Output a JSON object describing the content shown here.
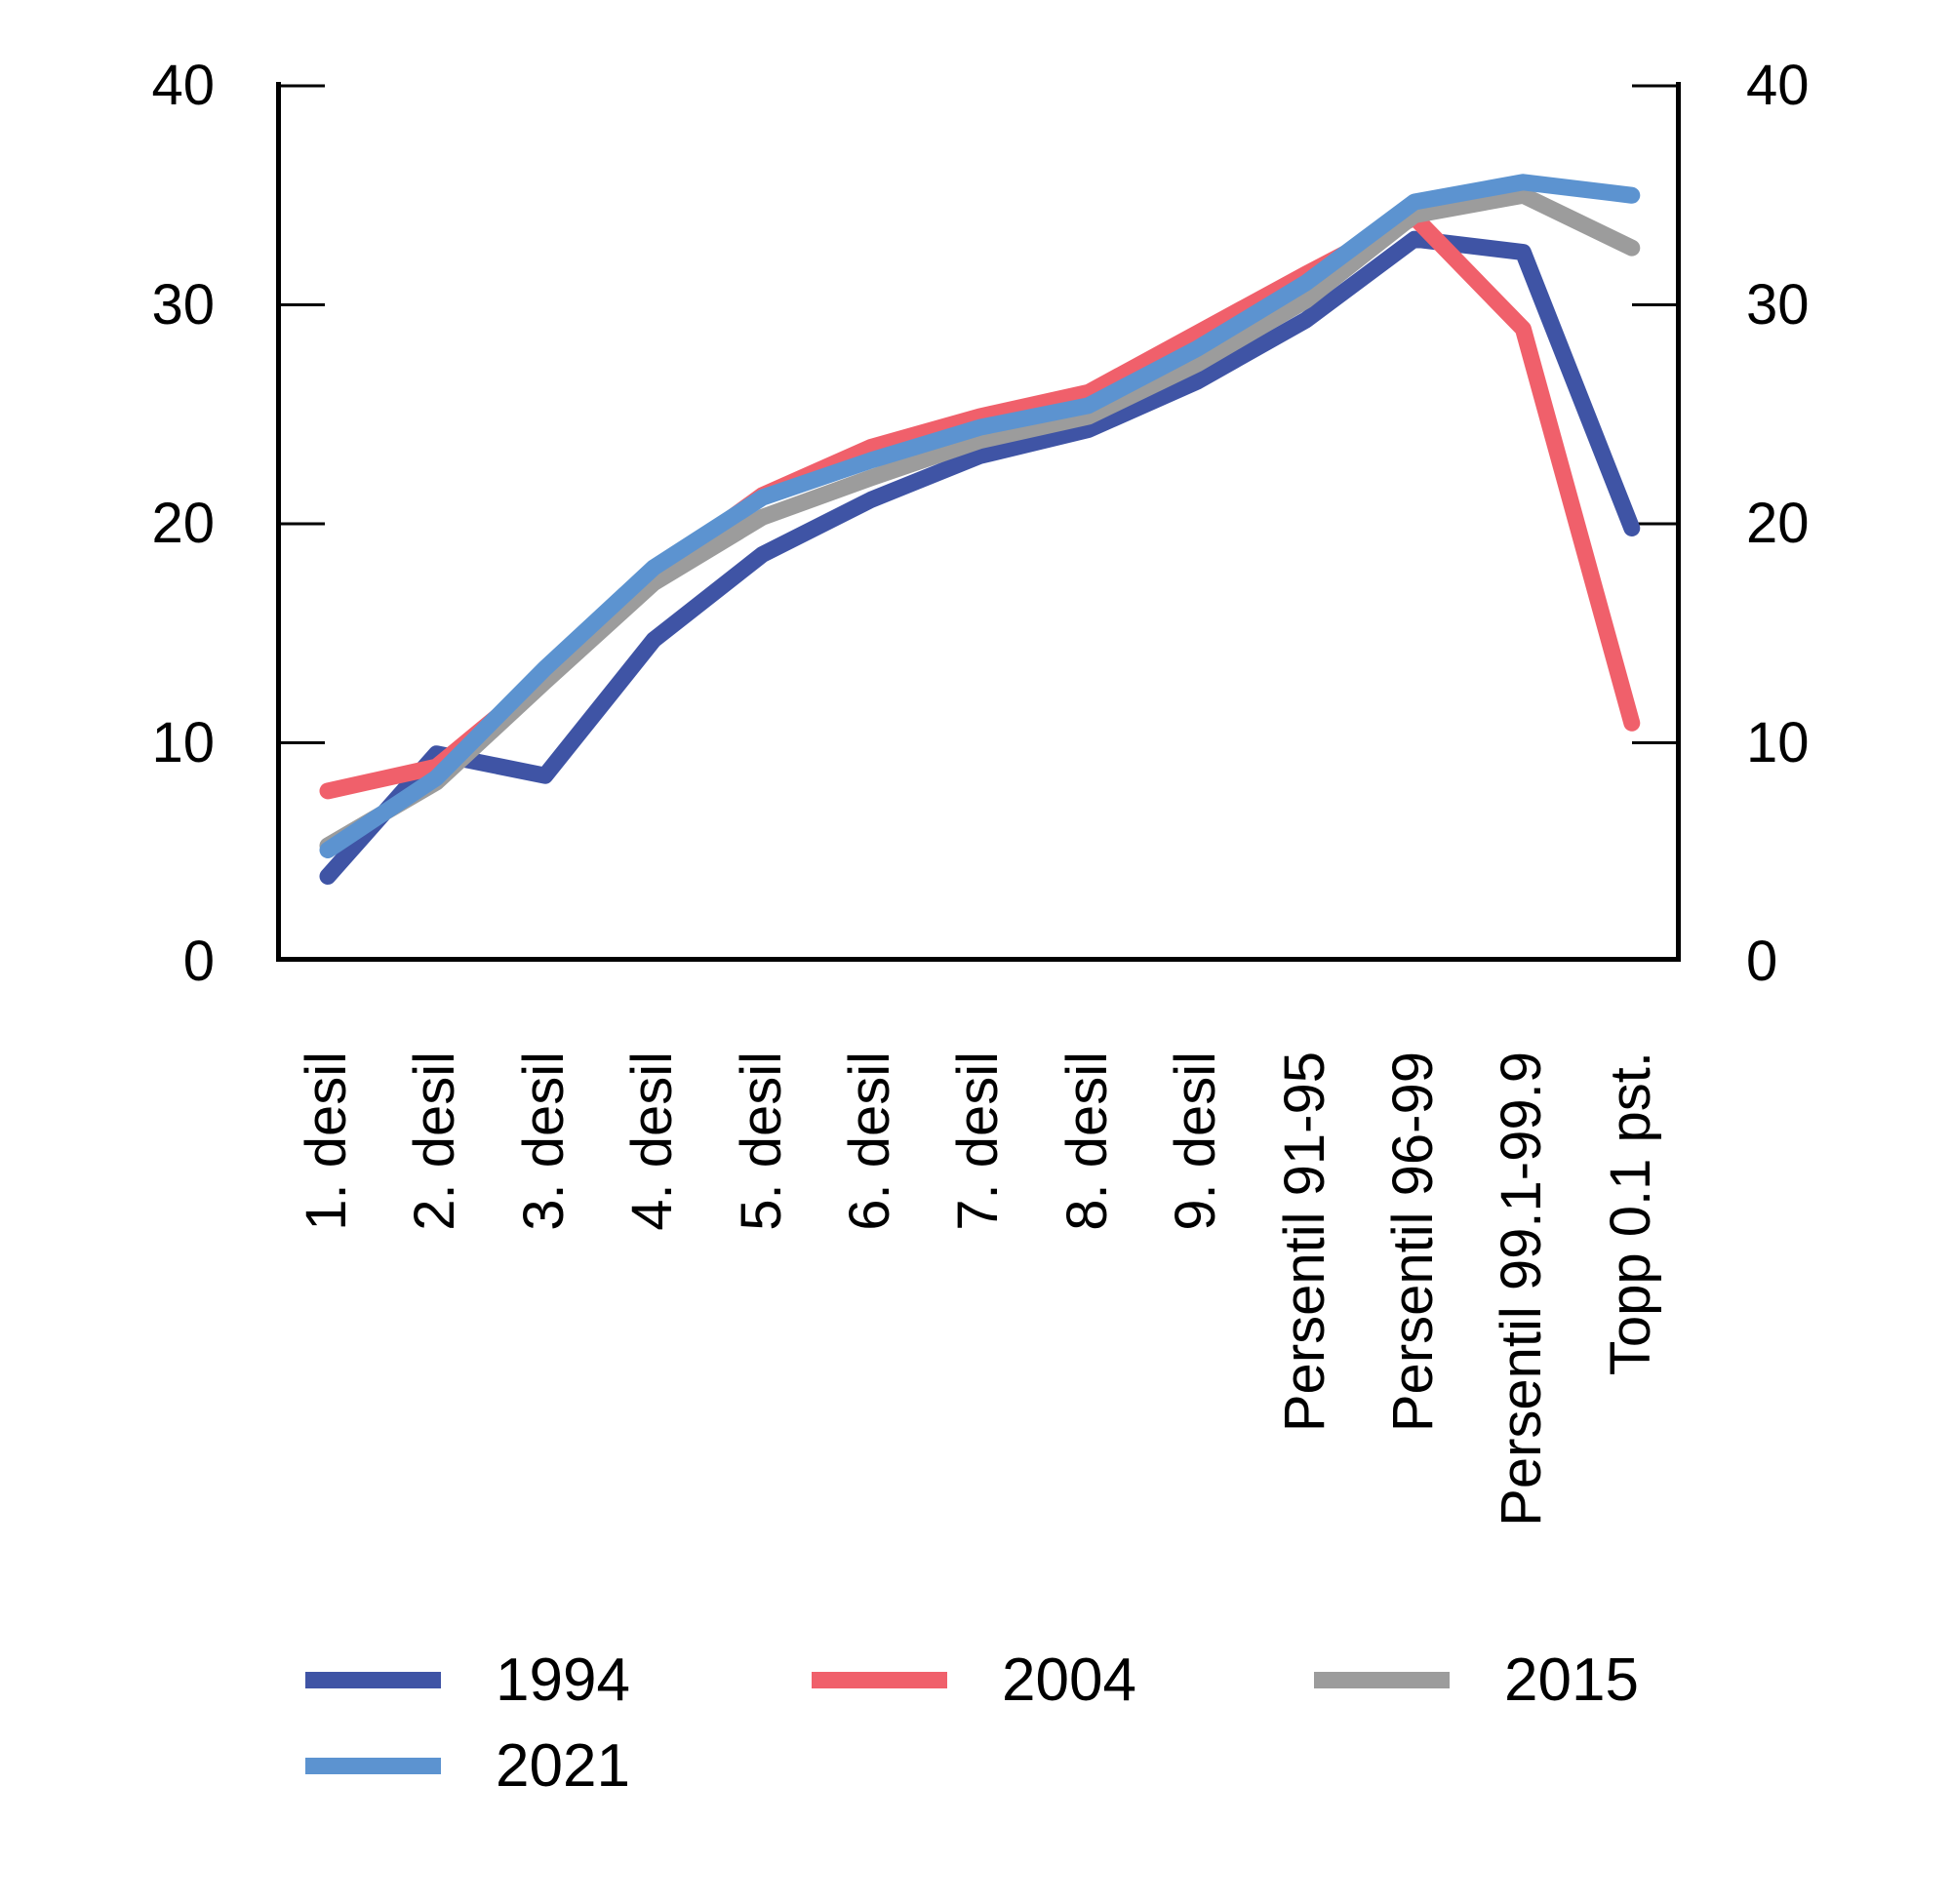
{
  "chart_data": {
    "type": "line",
    "categories": [
      "1. desil",
      "2. desil",
      "3. desil",
      "4. desil",
      "5. desil",
      "6. desil",
      "7. desil",
      "8. desil",
      "9. desil",
      "Persentil 91-95",
      "Persentil 96-99",
      "Persentil 99.1-99.9",
      "Topp 0.1 pst."
    ],
    "series": [
      {
        "name": "1994",
        "color": "#3F54A5",
        "values": [
          3.9,
          9.5,
          8.5,
          14.7,
          18.6,
          21.1,
          23.1,
          24.3,
          26.5,
          29.3,
          33.0,
          32.4,
          19.8
        ]
      },
      {
        "name": "2004",
        "color": "#F0606B",
        "values": [
          7.8,
          8.9,
          13.0,
          17.7,
          21.3,
          23.5,
          24.9,
          26.0,
          28.7,
          31.4,
          34.0,
          28.9,
          10.9
        ]
      },
      {
        "name": "2015",
        "color": "#9C9C9C",
        "values": [
          5.3,
          8.2,
          12.8,
          17.3,
          20.3,
          22.1,
          23.8,
          24.9,
          27.3,
          30.2,
          34.1,
          35.0,
          32.6
        ]
      },
      {
        "name": "2021",
        "color": "#5C93D0",
        "values": [
          5.1,
          8.4,
          13.4,
          18.0,
          21.2,
          22.9,
          24.4,
          25.4,
          28.0,
          31.0,
          34.7,
          35.6,
          35.0
        ]
      }
    ],
    "title": "",
    "xlabel": "",
    "ylabel": "",
    "ylim": [
      0,
      40
    ],
    "y_ticks": [
      0,
      10,
      20,
      30,
      40
    ],
    "y_axis_sides": [
      "left",
      "right"
    ],
    "grid": false,
    "legend_position": "bottom",
    "legend_rows": [
      [
        "1994",
        "2004",
        "2015"
      ],
      [
        "2021"
      ]
    ]
  }
}
